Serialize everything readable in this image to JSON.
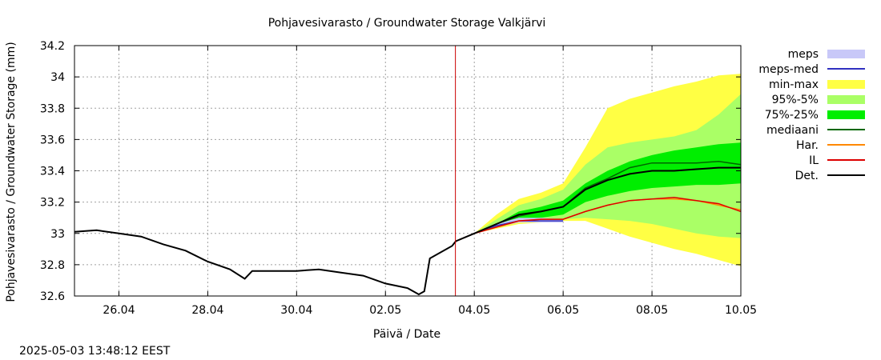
{
  "chart_data": {
    "type": "line",
    "title": "Pohjavesivarasto / Groundwater Storage   Valkjärvi",
    "xlabel": "Päivä / Date",
    "ylabel": "Pohjavesivarasto / Groundwater Storage (mm)",
    "timestamp": "2025-05-03 13:48:12 EEST",
    "x_unit": "day",
    "x_range": [
      "2025-04-25",
      "2025-05-10"
    ],
    "ylim": [
      32.6,
      34.2
    ],
    "y_ticks": [
      32.6,
      32.8,
      33.0,
      33.2,
      33.4,
      33.6,
      33.8,
      34.0,
      34.2
    ],
    "y_tick_labels": [
      "32.6",
      "32.8",
      "33",
      "33.2",
      "33.4",
      "33.6",
      "33.8",
      "34",
      "34.2"
    ],
    "x_ticks": [
      "2025-04-26",
      "2025-04-28",
      "2025-04-30",
      "2025-05-02",
      "2025-05-04",
      "2025-05-06",
      "2025-05-08",
      "2025-05-10"
    ],
    "x_tick_labels": [
      "26.04",
      "28.04",
      "30.04",
      "02.05",
      "04.05",
      "06.05",
      "08.05",
      "10.05"
    ],
    "grid": true,
    "legend_position": "right",
    "forecast_start": "2025-05-03 13:48",
    "forecast_line_color": "#cc0000",
    "legend": [
      {
        "label": "meps",
        "kind": "band",
        "color": "#c8c8f8"
      },
      {
        "label": "meps-med",
        "kind": "line",
        "color": "#3030c0"
      },
      {
        "label": "min-max",
        "kind": "band",
        "color": "#ffff44"
      },
      {
        "label": "95%-5%",
        "kind": "band",
        "color": "#aaff66"
      },
      {
        "label": "75%-25%",
        "kind": "band",
        "color": "#00ee00"
      },
      {
        "label": "mediaani",
        "kind": "line",
        "color": "#006600"
      },
      {
        "label": "Har.",
        "kind": "line",
        "color": "#ff8800"
      },
      {
        "label": "IL",
        "kind": "line",
        "color": "#dd0000"
      },
      {
        "label": "Det.",
        "kind": "line",
        "color": "#000000"
      }
    ],
    "observed": {
      "name": "Det.",
      "x": [
        "2025-04-25 00:00",
        "2025-04-25 12:00",
        "2025-04-26 00:00",
        "2025-04-26 12:00",
        "2025-04-27 00:00",
        "2025-04-27 12:00",
        "2025-04-28 00:00",
        "2025-04-28 12:00",
        "2025-04-28 20:00",
        "2025-04-29 00:00",
        "2025-04-29 12:00",
        "2025-04-30 00:00",
        "2025-04-30 12:00",
        "2025-05-01 00:00",
        "2025-05-01 12:00",
        "2025-05-02 00:00",
        "2025-05-02 12:00",
        "2025-05-02 18:00",
        "2025-05-02 21:00",
        "2025-05-03 00:00",
        "2025-05-03 12:00",
        "2025-05-03 14:00"
      ],
      "y": [
        33.01,
        33.02,
        33.0,
        32.98,
        32.93,
        32.89,
        32.82,
        32.77,
        32.71,
        32.76,
        32.76,
        32.76,
        32.77,
        32.75,
        32.73,
        32.68,
        32.65,
        32.61,
        32.63,
        32.84,
        32.92,
        32.95
      ]
    },
    "forecast_x": [
      "2025-05-03 14:00",
      "2025-05-04 00:00",
      "2025-05-04 12:00",
      "2025-05-05 00:00",
      "2025-05-05 12:00",
      "2025-05-06 00:00",
      "2025-05-06 12:00",
      "2025-05-07 00:00",
      "2025-05-07 12:00",
      "2025-05-08 00:00",
      "2025-05-08 12:00",
      "2025-05-09 00:00",
      "2025-05-09 12:00",
      "2025-05-10 00:00"
    ],
    "bands": [
      {
        "name": "min-max",
        "upper": [
          32.95,
          33.0,
          33.12,
          33.22,
          33.26,
          33.32,
          33.55,
          33.8,
          33.86,
          33.9,
          33.94,
          33.97,
          34.01,
          34.02
        ],
        "lower": [
          32.95,
          33.0,
          33.03,
          33.06,
          33.07,
          33.08,
          33.08,
          33.03,
          32.98,
          32.94,
          32.9,
          32.87,
          32.83,
          32.79
        ]
      },
      {
        "name": "95%-5%",
        "upper": [
          32.95,
          33.0,
          33.09,
          33.18,
          33.22,
          33.28,
          33.44,
          33.55,
          33.58,
          33.6,
          33.62,
          33.66,
          33.76,
          33.89
        ],
        "lower": [
          32.95,
          33.0,
          33.04,
          33.07,
          33.08,
          33.09,
          33.1,
          33.09,
          33.08,
          33.06,
          33.03,
          33.0,
          32.98,
          32.97
        ]
      },
      {
        "name": "75%-25%",
        "upper": [
          32.95,
          33.0,
          33.06,
          33.14,
          33.17,
          33.21,
          33.32,
          33.4,
          33.46,
          33.5,
          33.53,
          33.55,
          33.57,
          33.58
        ],
        "lower": [
          32.95,
          33.0,
          33.05,
          33.09,
          33.1,
          33.12,
          33.2,
          33.24,
          33.27,
          33.29,
          33.3,
          33.31,
          33.31,
          33.32
        ]
      },
      {
        "name": "meps",
        "upper": [
          32.95,
          33.0,
          33.06,
          33.1,
          33.1,
          33.09
        ],
        "lower": [
          32.95,
          33.0,
          33.04,
          33.07,
          33.07,
          33.07
        ]
      }
    ],
    "series": [
      {
        "name": "meps-med",
        "values": [
          32.95,
          33.0,
          33.05,
          33.08,
          33.08,
          33.08
        ]
      },
      {
        "name": "mediaani",
        "values": [
          32.95,
          33.0,
          33.06,
          33.11,
          33.14,
          33.17,
          33.29,
          33.35,
          33.42,
          33.45,
          33.45,
          33.45,
          33.46,
          33.44
        ]
      },
      {
        "name": "Har.",
        "values": [
          32.95,
          33.0,
          33.04,
          33.08,
          33.09,
          33.09,
          33.14,
          33.18,
          33.21,
          33.22,
          33.22,
          33.21,
          33.18,
          33.15
        ]
      },
      {
        "name": "IL",
        "values": [
          32.95,
          33.0,
          33.04,
          33.08,
          33.09,
          33.09,
          33.14,
          33.18,
          33.21,
          33.22,
          33.23,
          33.21,
          33.19,
          33.14
        ]
      },
      {
        "name": "Det.",
        "values": [
          32.95,
          33.0,
          33.06,
          33.12,
          33.14,
          33.17,
          33.28,
          33.34,
          33.38,
          33.4,
          33.4,
          33.41,
          33.42,
          33.42
        ]
      }
    ]
  }
}
